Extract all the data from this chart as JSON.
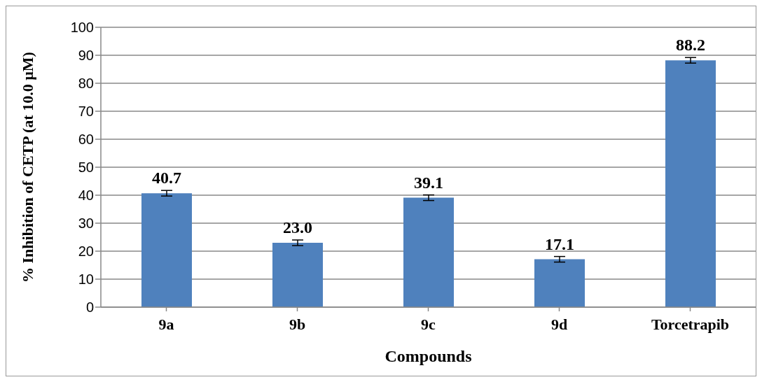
{
  "chart_data": {
    "type": "bar",
    "xlabel": "Compounds",
    "ylabel": "% Inhibition of CETP (at 10.0 µM)",
    "categories": [
      "9a",
      "9b",
      "9c",
      "9d",
      "Torcetrapib"
    ],
    "values": [
      40.7,
      23.0,
      39.1,
      17.1,
      88.2
    ],
    "value_labels": [
      "40.7",
      "23.0",
      "39.1",
      "17.1",
      "88.2"
    ],
    "errors": [
      1,
      1,
      1,
      1,
      1
    ],
    "color": "#4f81bd",
    "ylim": [
      0,
      100
    ],
    "yticks": [
      0,
      10,
      20,
      30,
      40,
      50,
      60,
      70,
      80,
      90,
      100
    ],
    "grid": "y"
  }
}
